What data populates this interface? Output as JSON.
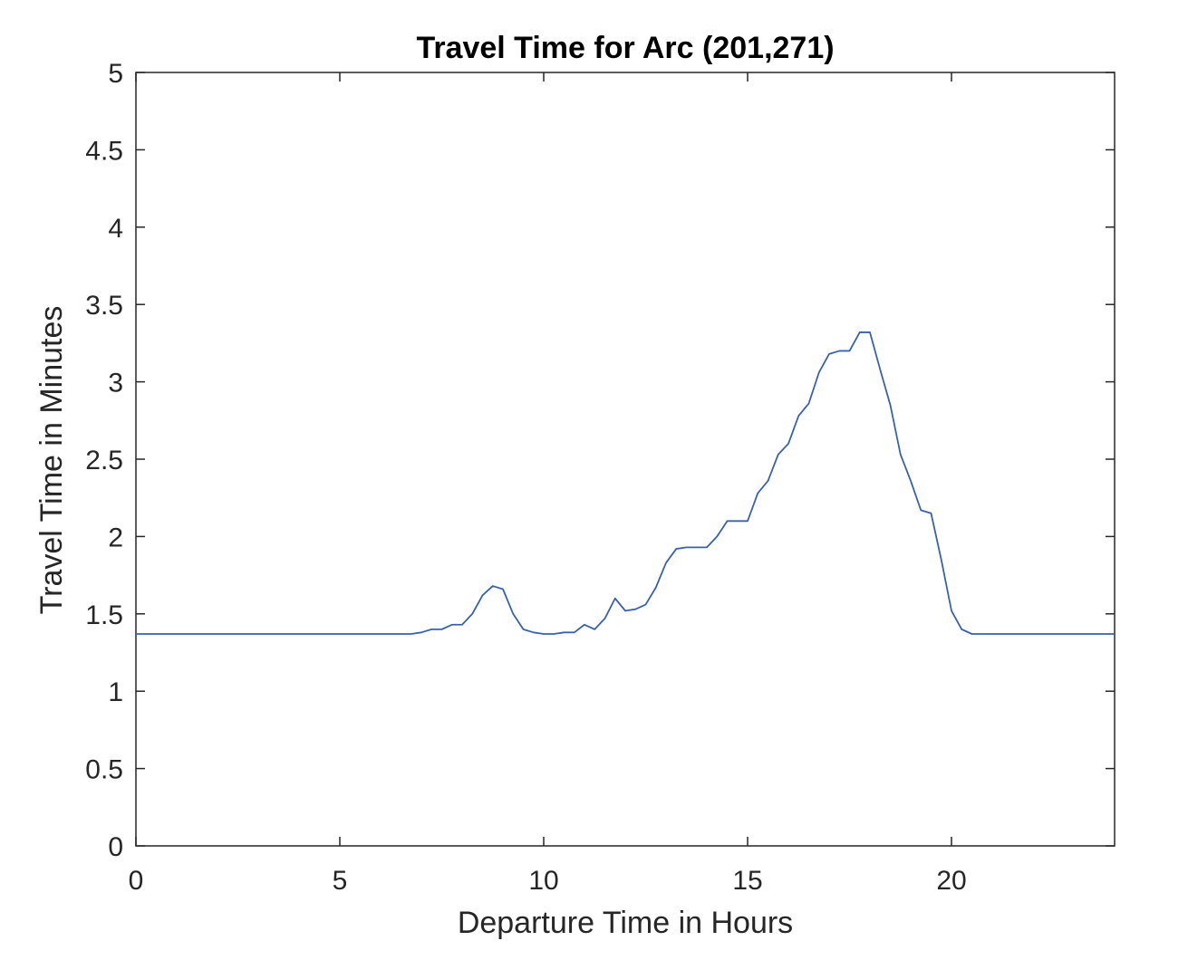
{
  "chart_data": {
    "type": "line",
    "title": "Travel Time for Arc (201,271)",
    "xlabel": "Departure Time in Hours",
    "ylabel": "Travel Time in Minutes",
    "xlim": [
      0,
      24
    ],
    "ylim": [
      0,
      5
    ],
    "xticks": [
      0,
      5,
      10,
      15,
      20
    ],
    "xtick_labels": [
      "0",
      "5",
      "10",
      "15",
      "20"
    ],
    "yticks": [
      0,
      0.5,
      1,
      1.5,
      2,
      2.5,
      3,
      3.5,
      4,
      4.5,
      5
    ],
    "ytick_labels": [
      "0",
      "0.5",
      "1",
      "1.5",
      "2",
      "2.5",
      "3",
      "3.5",
      "4",
      "4.5",
      "5"
    ],
    "grid": false,
    "colors": {
      "line": "#3a62a8",
      "axis": "#262626",
      "background": "#ffffff"
    },
    "series": [
      {
        "x": [
          0,
          6.75,
          7.0,
          7.25,
          7.5,
          7.75,
          8.0,
          8.25,
          8.5,
          8.75,
          9.0,
          9.25,
          9.5,
          9.75,
          10.0,
          10.25,
          10.5,
          10.75,
          11.0,
          11.25,
          11.5,
          11.75,
          12.0,
          12.25,
          12.5,
          12.75,
          13.0,
          13.25,
          13.5,
          13.75,
          14.0,
          14.25,
          14.5,
          14.75,
          15.0,
          15.25,
          15.5,
          15.75,
          16.0,
          16.25,
          16.5,
          16.75,
          17.0,
          17.25,
          17.5,
          17.75,
          18.0,
          18.25,
          18.5,
          18.75,
          19.0,
          19.25,
          19.5,
          19.75,
          20.0,
          20.25,
          20.5,
          24
        ],
        "y": [
          1.37,
          1.37,
          1.38,
          1.4,
          1.4,
          1.43,
          1.43,
          1.5,
          1.62,
          1.68,
          1.66,
          1.5,
          1.4,
          1.38,
          1.37,
          1.37,
          1.38,
          1.38,
          1.43,
          1.4,
          1.47,
          1.6,
          1.52,
          1.53,
          1.56,
          1.67,
          1.83,
          1.92,
          1.93,
          1.93,
          1.93,
          2.0,
          2.1,
          2.1,
          2.1,
          2.28,
          2.36,
          2.53,
          2.6,
          2.78,
          2.86,
          3.06,
          3.18,
          3.2,
          3.2,
          3.32,
          3.32,
          3.08,
          2.85,
          2.53,
          2.36,
          2.17,
          2.15,
          1.85,
          1.52,
          1.4,
          1.37,
          1.37
        ]
      }
    ]
  }
}
